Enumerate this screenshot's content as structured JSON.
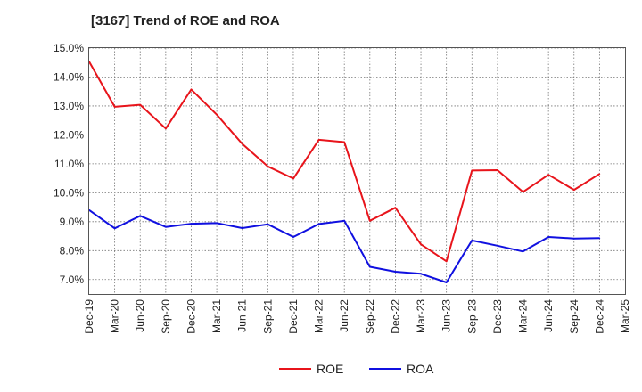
{
  "chart_data": {
    "type": "line",
    "title": "[3167]  Trend of ROE and ROA",
    "xlabel": "",
    "ylabel": "",
    "categories": [
      "Dec-19",
      "Mar-20",
      "Jun-20",
      "Sep-20",
      "Dec-20",
      "Mar-21",
      "Jun-21",
      "Sep-21",
      "Dec-21",
      "Mar-22",
      "Jun-22",
      "Sep-22",
      "Dec-22",
      "Mar-23",
      "Jun-23",
      "Sep-23",
      "Dec-23",
      "Mar-24",
      "Jun-24",
      "Sep-24",
      "Dec-24",
      "Mar-25"
    ],
    "y_ticks": [
      "7.0%",
      "8.0%",
      "9.0%",
      "10.0%",
      "11.0%",
      "12.0%",
      "13.0%",
      "14.0%",
      "15.0%"
    ],
    "ylim": [
      6.5,
      15.0
    ],
    "grid": true,
    "legend_position": "bottom",
    "series": [
      {
        "name": "ROE",
        "color": "#e8141b",
        "values": [
          14.53,
          12.97,
          13.04,
          12.22,
          13.57,
          12.7,
          11.69,
          10.91,
          10.49,
          11.83,
          11.75,
          9.03,
          9.48,
          8.22,
          7.63,
          10.77,
          10.78,
          10.03,
          10.62,
          10.1,
          10.65,
          null
        ]
      },
      {
        "name": "ROA",
        "color": "#1010e0",
        "values": [
          9.4,
          8.77,
          9.2,
          8.82,
          8.93,
          8.95,
          8.78,
          8.91,
          8.47,
          8.92,
          9.03,
          7.44,
          7.27,
          7.2,
          6.9,
          8.35,
          8.17,
          7.97,
          8.47,
          8.42,
          8.43,
          null
        ]
      }
    ]
  }
}
